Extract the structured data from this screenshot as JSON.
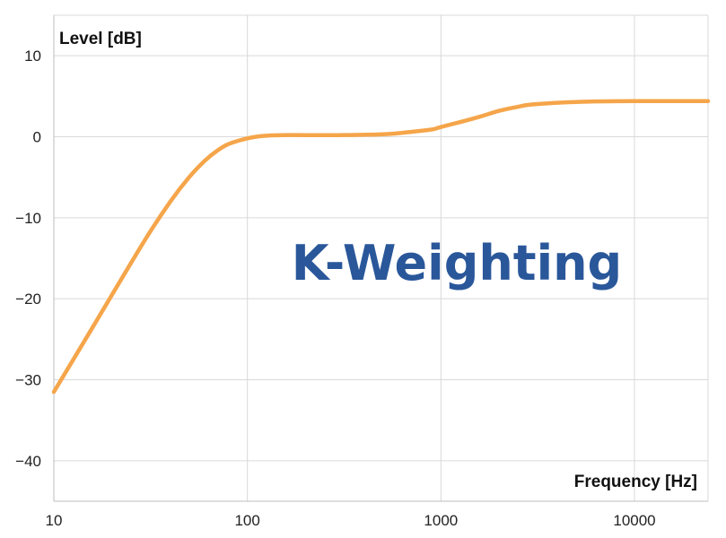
{
  "chart_data": {
    "type": "line",
    "title": "K-Weighting",
    "xlabel": "Frequency [Hz]",
    "ylabel": "Level [dB]",
    "x_scale": "log",
    "xlim": [
      10,
      24000
    ],
    "ylim": [
      -45,
      15
    ],
    "x_ticks": [
      10,
      100,
      1000,
      10000
    ],
    "x_tick_labels": [
      "10",
      "100",
      "1000",
      "10000"
    ],
    "y_ticks": [
      10,
      0,
      -10,
      -20,
      -30,
      -40
    ],
    "y_tick_labels": [
      "10",
      "0",
      "−10",
      "−20",
      "−30",
      "−40"
    ],
    "grid": true,
    "series": [
      {
        "color": "#f5a54a",
        "x": [
          10,
          15,
          20,
          30,
          40,
          50,
          60,
          70,
          80,
          100,
          120,
          150,
          200,
          300,
          500,
          700,
          900,
          1000,
          1500,
          2000,
          2500,
          3000,
          5000,
          10000,
          24000
        ],
        "y": [
          -31.5,
          -24.5,
          -19.5,
          -12.5,
          -8.0,
          -5.0,
          -3.0,
          -1.7,
          -0.9,
          -0.2,
          0.1,
          0.2,
          0.2,
          0.2,
          0.3,
          0.6,
          0.9,
          1.2,
          2.3,
          3.2,
          3.7,
          4.0,
          4.3,
          4.4,
          4.4
        ]
      }
    ],
    "colors": {
      "title": "#2a579a",
      "line": "#f5a54a",
      "grid": "#d9d9d9",
      "frame": "#bdbdbd"
    }
  }
}
